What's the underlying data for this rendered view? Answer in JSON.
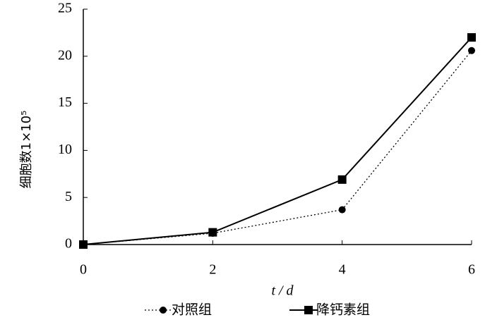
{
  "chart_data": {
    "type": "line",
    "x_label": "t / d",
    "y_label": "细胞数1×10⁵",
    "x": [
      0,
      2,
      4,
      6
    ],
    "xlim": [
      0,
      6
    ],
    "xticks": [
      0,
      2,
      4,
      6
    ],
    "ylim": [
      0,
      25
    ],
    "yticks": [
      0,
      5,
      10,
      15,
      20,
      25
    ],
    "series": [
      {
        "name": "对照组",
        "color": "#000000",
        "style": "dotted",
        "marker": "circle",
        "values": [
          0,
          1.2,
          3.7,
          20.6
        ]
      },
      {
        "name": "降钙素组",
        "color": "#000000",
        "style": "solid",
        "marker": "square",
        "values": [
          0,
          1.3,
          6.9,
          22.0
        ]
      }
    ]
  }
}
